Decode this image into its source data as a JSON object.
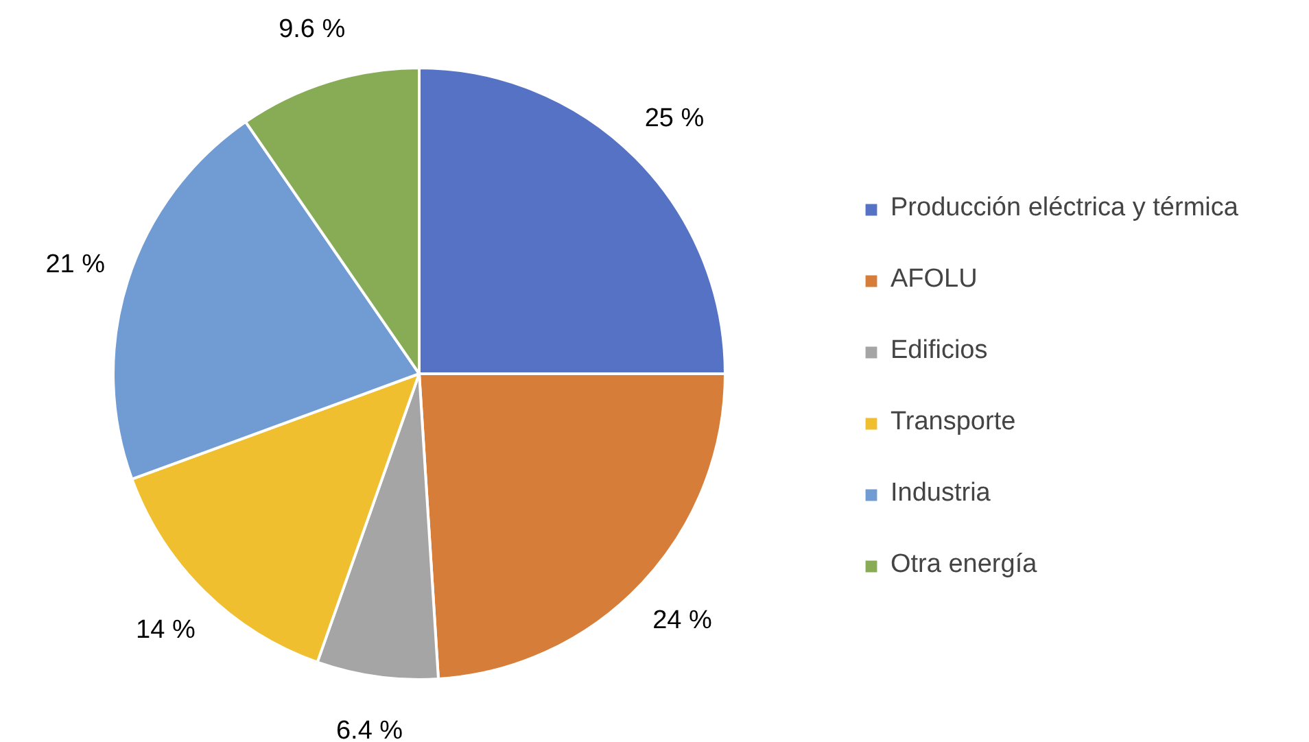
{
  "chart_data": {
    "type": "pie",
    "categories": [
      "Producción eléctrica y térmica",
      "AFOLU",
      "Edificios",
      "Transporte",
      "Industria",
      "Otra energía"
    ],
    "values": [
      25,
      24,
      6.4,
      14,
      21,
      9.6
    ],
    "colors": [
      "#5572c4",
      "#d67d3a",
      "#a5a5a5",
      "#efbf2f",
      "#709cd3",
      "#87ac55"
    ],
    "value_labels": [
      "25 %",
      "24 %",
      "6.4 %",
      "14 %",
      "21 %",
      "9.6 %"
    ],
    "legend": "right"
  }
}
